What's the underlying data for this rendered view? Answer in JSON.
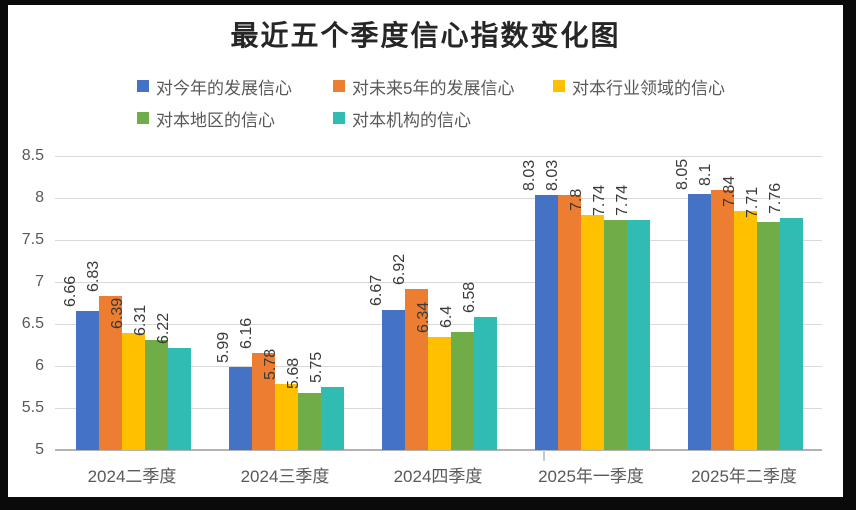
{
  "title": "最近五个季度信心指数变化图",
  "colors": {
    "background": "#ffffff",
    "frame_border": "#0a0a0a",
    "gridline": "#d9d9d9",
    "axis_line": "#b3b3b3",
    "axis_text": "#595959",
    "data_label_text": "#3a3a3a",
    "title_text": "#262626"
  },
  "chart_data": {
    "type": "bar",
    "title": "最近五个季度信心指数变化图",
    "categories": [
      "2024二季度",
      "2024三季度",
      "2024四季度",
      "2025年一季度",
      "2025年二季度"
    ],
    "series": [
      {
        "name": "对今年的发展信心",
        "color": "#4472C4",
        "values": [
          6.66,
          5.99,
          6.67,
          8.03,
          8.05
        ],
        "labels": [
          "6.66",
          "5.99",
          "6.67",
          "8.03",
          "8.05"
        ]
      },
      {
        "name": "对未来5年的发展信心",
        "color": "#ED7D31",
        "values": [
          6.83,
          6.16,
          6.92,
          8.03,
          8.1
        ],
        "labels": [
          "6.83",
          "6.16",
          "6.92",
          "8.03",
          "8.1"
        ]
      },
      {
        "name": "对本行业领域的信心",
        "color": "#FFC000",
        "values": [
          6.39,
          5.78,
          6.34,
          7.8,
          7.84
        ],
        "labels": [
          "6.39",
          "5.78",
          "6.34",
          "7.8",
          "7.84"
        ]
      },
      {
        "name": "对本地区的信心",
        "color": "#70AD47",
        "values": [
          6.31,
          5.68,
          6.4,
          7.74,
          7.71
        ],
        "labels": [
          "6.31",
          "5.68",
          "6.4",
          "7.74",
          "7.71"
        ]
      },
      {
        "name": "对本机构的信心",
        "color": "#30BCB3",
        "values": [
          6.22,
          5.75,
          6.58,
          7.74,
          7.76
        ],
        "labels": [
          "6.22",
          "5.75",
          "6.58",
          "7.74",
          "7.76"
        ]
      }
    ],
    "xlabel": "",
    "ylabel": "",
    "ylim": [
      5,
      8.5
    ],
    "ytick_step": 0.5,
    "yticks": [
      "5",
      "5.5",
      "6",
      "6.5",
      "7",
      "7.5",
      "8",
      "8.5"
    ],
    "grid": true,
    "legend_position": "top",
    "data_labels_rotation": 90
  }
}
